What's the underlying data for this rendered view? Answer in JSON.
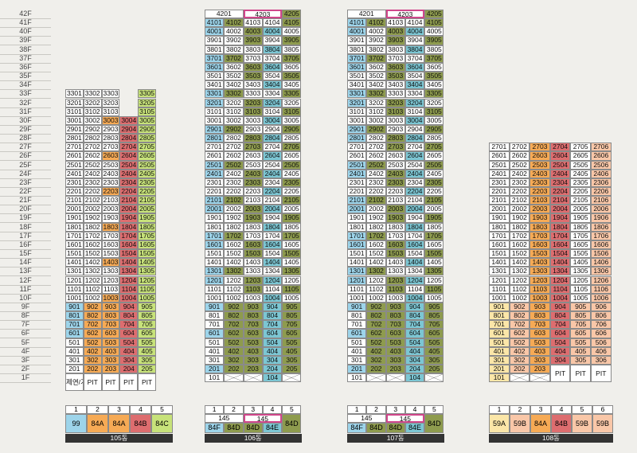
{
  "floors": [
    "42F",
    "41F",
    "40F",
    "39F",
    "38F",
    "37F",
    "36F",
    "35F",
    "34F",
    "33F",
    "32F",
    "31F",
    "30F",
    "29F",
    "28F",
    "27F",
    "26F",
    "25F",
    "24F",
    "23F",
    "22F",
    "21F",
    "20F",
    "19F",
    "18F",
    "17F",
    "16F",
    "15F",
    "14F",
    "13F",
    "12F",
    "11F",
    "10F",
    "9F",
    "8F",
    "7F",
    "6F",
    "5F",
    "4F",
    "3F",
    "2F",
    "1F"
  ],
  "b105": {
    "name": "105동",
    "line_nums": [
      "1",
      "2",
      "3",
      "4",
      "5"
    ],
    "types": [
      "99",
      "84A",
      "84A",
      "84B",
      "84C"
    ],
    "pit": "PIT",
    "lobby": "제연/기소",
    "cells": {
      "3301": "3301",
      "3302": "3302",
      "3303": "3303",
      "3305": "3305",
      "3201": "3201",
      "3202": "3202",
      "3203": "3203",
      "3205": "3205",
      "3101": "3101",
      "3102": "3102",
      "3103": "3103",
      "3105": "3105",
      "3001": "3001",
      "3002": "3002",
      "3003": "3003",
      "3004": "3004",
      "3005": "3005"
    }
  },
  "b106": {
    "name": "106동",
    "line_nums": [
      "1",
      "2",
      "3",
      "4",
      "5"
    ],
    "types": [
      "84F",
      "84D",
      "84D",
      "84E",
      "84D"
    ],
    "pair_labels": [
      "145",
      "145"
    ],
    "top_labels": [
      "4201",
      "4203",
      "4205"
    ]
  },
  "b107": {
    "name": "107동",
    "line_nums": [
      "1",
      "2",
      "3",
      "4",
      "5"
    ],
    "types": [
      "84F",
      "84D",
      "84D",
      "84E",
      "84D"
    ],
    "pair_labels": [
      "145",
      "145"
    ],
    "top_labels": [
      "4201",
      "4203",
      "4205"
    ]
  },
  "b108": {
    "name": "108동",
    "line_nums": [
      "1",
      "2",
      "3",
      "4",
      "5",
      "6"
    ],
    "types": [
      "59A",
      "59B",
      "84A",
      "84B",
      "59B",
      "59B"
    ],
    "pit": "PIT"
  },
  "colors": {
    "white": "#ffffff",
    "blue": "#9dd4ea",
    "orange": "#f6aa55",
    "red": "#dd6d6f",
    "green": "#c7e27a",
    "olive": "#8e9b4e",
    "teal": "#7cc6d3",
    "yellow": "#fbe6a8",
    "salmon": "#f9c7a8"
  }
}
